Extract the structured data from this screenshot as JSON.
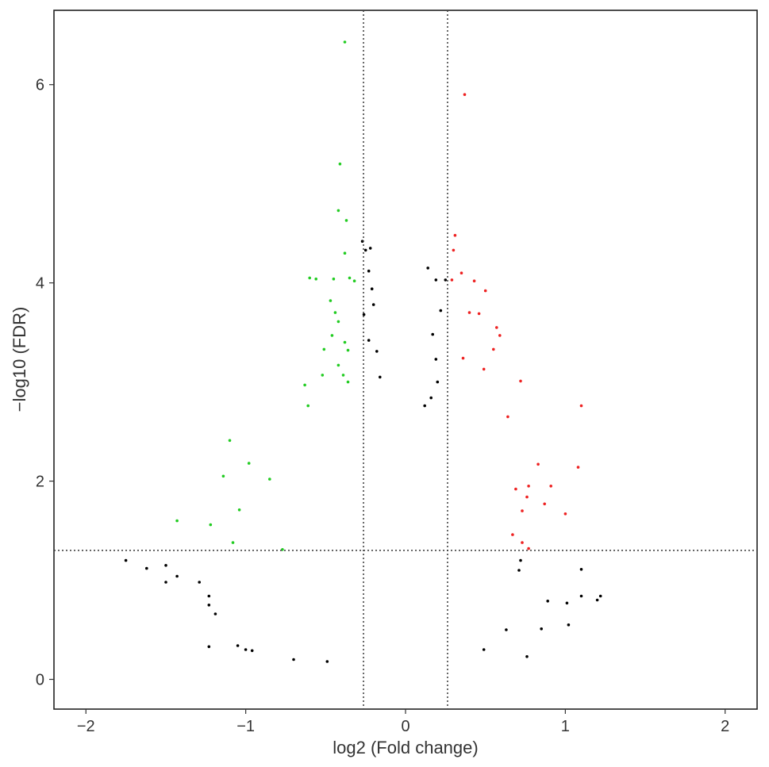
{
  "chart_data": {
    "type": "scatter",
    "title": "",
    "xlabel": "log2 (Fold change)",
    "ylabel": "−log10 (FDR)",
    "xlim": [
      -2.2,
      2.2
    ],
    "ylim": [
      -0.3,
      6.75
    ],
    "x_ticks": [
      -2,
      -1,
      0,
      1,
      2
    ],
    "x_tick_labels": [
      "−2",
      "−1",
      "0",
      "1",
      "2"
    ],
    "y_ticks": [
      0,
      2,
      4,
      6
    ],
    "y_tick_labels": [
      "0",
      "2",
      "4",
      "6"
    ],
    "grid": false,
    "legend": "none",
    "thresholds": {
      "log2_fold_change": [
        -0.263,
        0.263
      ],
      "neg_log10_fdr": 1.301
    },
    "colors": {
      "down": "#22cc22",
      "up": "#ee2222",
      "not_significant": "#000000",
      "threshold_line": "#444444"
    },
    "series": [
      {
        "key": "down",
        "points": [
          [
            -0.38,
            6.43
          ],
          [
            -0.41,
            5.2
          ],
          [
            -0.42,
            4.73
          ],
          [
            -0.37,
            4.63
          ],
          [
            -0.38,
            4.3
          ],
          [
            -0.6,
            4.05
          ],
          [
            -0.56,
            4.04
          ],
          [
            -0.45,
            4.04
          ],
          [
            -0.35,
            4.05
          ],
          [
            -0.32,
            4.02
          ],
          [
            -0.47,
            3.82
          ],
          [
            -0.44,
            3.7
          ],
          [
            -0.42,
            3.61
          ],
          [
            -0.46,
            3.47
          ],
          [
            -0.51,
            3.33
          ],
          [
            -0.38,
            3.4
          ],
          [
            -0.36,
            3.32
          ],
          [
            -0.42,
            3.17
          ],
          [
            -0.39,
            3.07
          ],
          [
            -0.52,
            3.07
          ],
          [
            -0.36,
            3.0
          ],
          [
            -0.63,
            2.97
          ],
          [
            -0.61,
            2.76
          ],
          [
            -1.1,
            2.41
          ],
          [
            -0.98,
            2.18
          ],
          [
            -1.14,
            2.05
          ],
          [
            -0.85,
            2.02
          ],
          [
            -1.04,
            1.71
          ],
          [
            -1.43,
            1.6
          ],
          [
            -1.22,
            1.56
          ],
          [
            -1.08,
            1.38
          ],
          [
            -0.77,
            1.31
          ]
        ]
      },
      {
        "key": "up",
        "points": [
          [
            0.37,
            5.9
          ],
          [
            0.31,
            4.48
          ],
          [
            0.3,
            4.33
          ],
          [
            0.35,
            4.1
          ],
          [
            0.43,
            4.02
          ],
          [
            0.29,
            4.03
          ],
          [
            0.5,
            3.92
          ],
          [
            0.4,
            3.7
          ],
          [
            0.46,
            3.69
          ],
          [
            0.57,
            3.55
          ],
          [
            0.59,
            3.47
          ],
          [
            0.55,
            3.33
          ],
          [
            0.36,
            3.24
          ],
          [
            0.49,
            3.13
          ],
          [
            0.72,
            3.01
          ],
          [
            1.1,
            2.76
          ],
          [
            0.64,
            2.65
          ],
          [
            0.83,
            2.17
          ],
          [
            1.08,
            2.14
          ],
          [
            0.77,
            1.95
          ],
          [
            0.91,
            1.95
          ],
          [
            0.69,
            1.92
          ],
          [
            0.76,
            1.84
          ],
          [
            0.87,
            1.77
          ],
          [
            0.73,
            1.7
          ],
          [
            1.0,
            1.67
          ],
          [
            0.67,
            1.46
          ],
          [
            0.73,
            1.38
          ],
          [
            0.77,
            1.32
          ]
        ]
      },
      {
        "key": "not_significant",
        "points": [
          [
            -1.75,
            1.2
          ],
          [
            -1.62,
            1.12
          ],
          [
            -1.5,
            1.15
          ],
          [
            -1.43,
            1.04
          ],
          [
            -1.5,
            0.98
          ],
          [
            -1.29,
            0.98
          ],
          [
            -1.23,
            0.84
          ],
          [
            -1.23,
            0.75
          ],
          [
            -1.19,
            0.66
          ],
          [
            -1.23,
            0.33
          ],
          [
            -1.05,
            0.34
          ],
          [
            -1.0,
            0.3
          ],
          [
            -0.96,
            0.29
          ],
          [
            -0.7,
            0.2
          ],
          [
            -0.49,
            0.18
          ],
          [
            1.22,
            0.84
          ],
          [
            1.2,
            0.8
          ],
          [
            1.1,
            1.11
          ],
          [
            1.1,
            0.84
          ],
          [
            1.01,
            0.77
          ],
          [
            1.02,
            0.55
          ],
          [
            0.89,
            0.79
          ],
          [
            0.85,
            0.51
          ],
          [
            0.76,
            0.23
          ],
          [
            0.72,
            1.2
          ],
          [
            0.71,
            1.1
          ],
          [
            0.63,
            0.5
          ],
          [
            0.49,
            0.3
          ],
          [
            -0.27,
            4.42
          ],
          [
            -0.25,
            4.33
          ],
          [
            -0.22,
            4.35
          ],
          [
            -0.23,
            4.12
          ],
          [
            -0.21,
            3.94
          ],
          [
            -0.26,
            3.68
          ],
          [
            -0.2,
            3.78
          ],
          [
            -0.23,
            3.42
          ],
          [
            -0.18,
            3.31
          ],
          [
            -0.16,
            3.05
          ],
          [
            0.14,
            4.15
          ],
          [
            0.19,
            4.03
          ],
          [
            0.25,
            4.03
          ],
          [
            0.22,
            3.72
          ],
          [
            0.17,
            3.48
          ],
          [
            0.19,
            3.23
          ],
          [
            0.2,
            3.0
          ],
          [
            0.16,
            2.84
          ],
          [
            0.12,
            2.76
          ]
        ]
      }
    ]
  }
}
